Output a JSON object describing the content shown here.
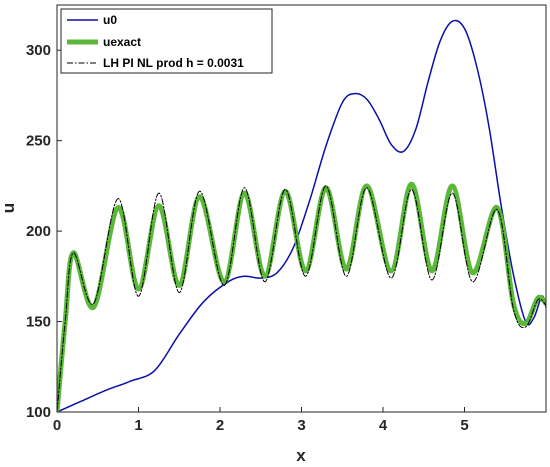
{
  "chart_data": {
    "type": "line",
    "xlabel": "x",
    "ylabel": "u",
    "xlim": [
      0,
      6
    ],
    "ylim": [
      100,
      325
    ],
    "xticks": [
      0,
      1,
      2,
      3,
      4,
      5
    ],
    "yticks": [
      100,
      150,
      200,
      250,
      300
    ],
    "grid": false,
    "legend_position": "top-left",
    "series": [
      {
        "name": "u0",
        "color": "#0b0fa8",
        "style": "solid",
        "x": [
          0,
          0.3,
          0.6,
          0.9,
          1.2,
          1.5,
          1.8,
          2.1,
          2.3,
          2.5,
          2.7,
          2.9,
          3.1,
          3.3,
          3.5,
          3.65,
          3.8,
          3.95,
          4.1,
          4.25,
          4.4,
          4.55,
          4.7,
          4.85,
          5.0,
          5.15,
          5.3,
          5.45,
          5.6,
          5.75,
          5.85,
          5.95,
          6.0
        ],
        "y": [
          100,
          106,
          112,
          117,
          123,
          143,
          161,
          172,
          175,
          174,
          177,
          191,
          217,
          247,
          271,
          276,
          273,
          262,
          248,
          244,
          256,
          282,
          305,
          316,
          312,
          291,
          258,
          214,
          176,
          150,
          152,
          164,
          158
        ]
      },
      {
        "name": "uexact",
        "color": "#5cb83a",
        "style": "solid",
        "x": [
          0,
          0.1,
          0.2,
          0.45,
          0.75,
          1.0,
          1.25,
          1.5,
          1.75,
          2.05,
          2.3,
          2.55,
          2.8,
          3.05,
          3.3,
          3.55,
          3.8,
          4.1,
          4.35,
          4.6,
          4.85,
          5.1,
          5.4,
          5.6,
          5.75,
          5.9,
          6.0
        ],
        "y": [
          100,
          150,
          188,
          158,
          213,
          168,
          214,
          170,
          219,
          172,
          221,
          175,
          222,
          178,
          224,
          179,
          225,
          178,
          226,
          178,
          225,
          177,
          213,
          160,
          149,
          163,
          160
        ]
      },
      {
        "name": "LH PI NL prod h = 0.0031",
        "color": "#000000",
        "style": "dash-dot",
        "x": [
          0,
          0.1,
          0.2,
          0.45,
          0.75,
          1.0,
          1.25,
          1.5,
          1.75,
          2.05,
          2.3,
          2.55,
          2.8,
          3.05,
          3.3,
          3.55,
          3.8,
          4.1,
          4.35,
          4.6,
          4.85,
          5.1,
          5.4,
          5.6,
          5.75,
          5.9,
          6.0
        ],
        "y": [
          100,
          150,
          188,
          160,
          218,
          164,
          221,
          166,
          222,
          170,
          224,
          172,
          223,
          175,
          225,
          175,
          224,
          174,
          223,
          173,
          221,
          172,
          212,
          157,
          147,
          162,
          159
        ]
      }
    ]
  }
}
